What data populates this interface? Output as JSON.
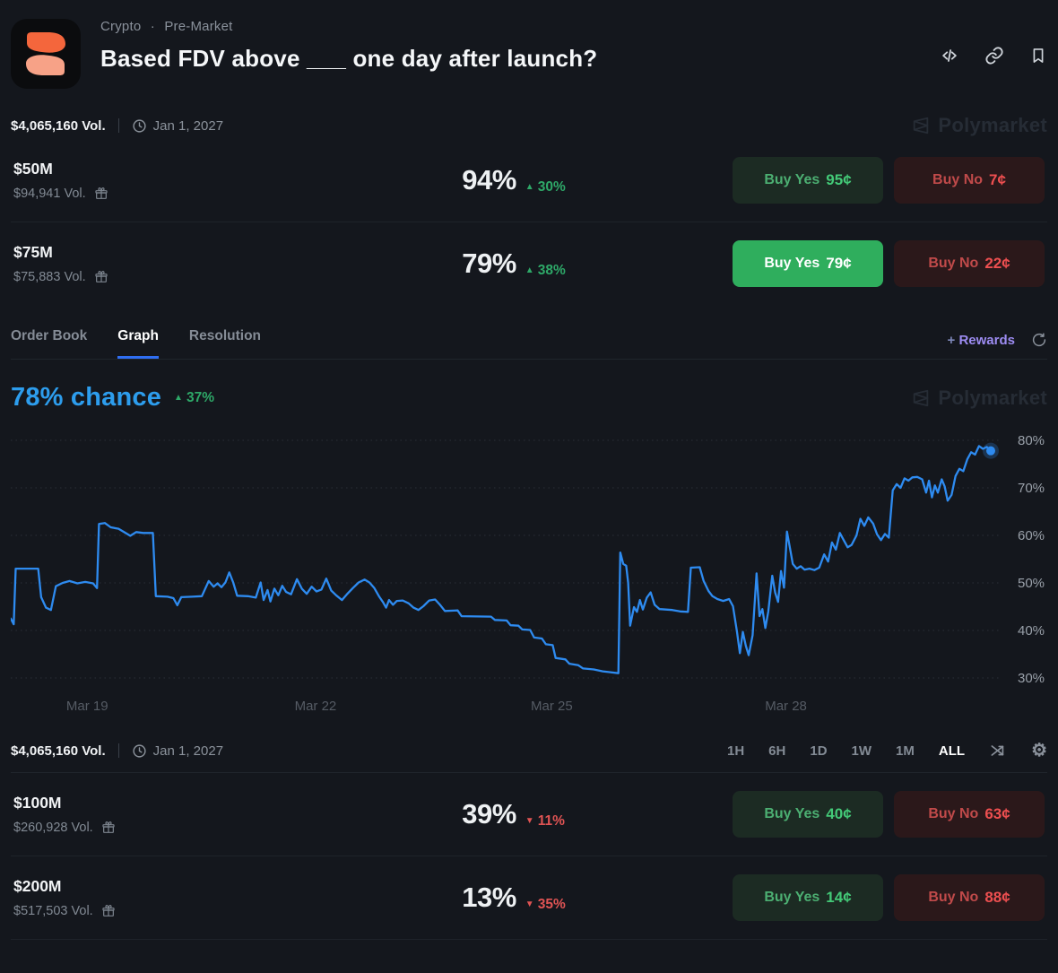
{
  "header": {
    "breadcrumb": {
      "category": "Crypto",
      "separator": "·",
      "subcategory": "Pre-Market"
    },
    "title": "Based FDV above ___ one day after launch?"
  },
  "meta": {
    "volume": "$4,065,160 Vol.",
    "date": "Jan 1, 2027"
  },
  "watermark": {
    "text": "Polymarket"
  },
  "outcomes": [
    {
      "name": "$50M",
      "volume": "$94,941 Vol.",
      "chance": "94%",
      "delta": "30%",
      "arrow": "▲",
      "yes_label": "Buy Yes",
      "yes_price": "95¢",
      "no_label": "Buy No",
      "no_price": "7¢"
    },
    {
      "name": "$75M",
      "volume": "$75,883 Vol.",
      "chance": "79%",
      "delta": "38%",
      "arrow": "▲",
      "yes_label": "Buy Yes",
      "yes_price": "79¢",
      "no_label": "Buy No",
      "no_price": "22¢"
    },
    {
      "name": "$100M",
      "volume": "$260,928 Vol.",
      "chance": "39%",
      "delta": "11%",
      "arrow": "▼",
      "yes_label": "Buy Yes",
      "yes_price": "40¢",
      "no_label": "Buy No",
      "no_price": "63¢"
    },
    {
      "name": "$200M",
      "volume": "$517,503 Vol.",
      "chance": "13%",
      "delta": "35%",
      "arrow": "▼",
      "yes_label": "Buy Yes",
      "yes_price": "14¢",
      "no_label": "Buy No",
      "no_price": "88¢"
    }
  ],
  "tabs": {
    "items": [
      "Order Book",
      "Graph",
      "Resolution"
    ],
    "active": "Graph",
    "rewards_plus": "+",
    "rewards": "Rewards"
  },
  "chart_header": {
    "chance": "78% chance",
    "delta": "37%",
    "arrow": "▲"
  },
  "time_controls": {
    "ranges": [
      "1H",
      "6H",
      "1D",
      "1W",
      "1M",
      "ALL"
    ],
    "active": "ALL"
  },
  "colors": {
    "line": "#2e8bf0",
    "chance_blue": "#2d9ded",
    "up_green": "#2ea868",
    "down_red": "#e05454",
    "yes_green": "#2fae5d",
    "background": "#14171d"
  },
  "chart_data": {
    "type": "line",
    "title": "78% chance",
    "unit": "%",
    "ylim": [
      28,
      84
    ],
    "grid": "dotted-horizontal",
    "legend": "none",
    "y_ticks": [
      {
        "value": 80,
        "label": "80%"
      },
      {
        "value": 70,
        "label": "70%"
      },
      {
        "value": 60,
        "label": "60%"
      },
      {
        "value": 50,
        "label": "50%"
      },
      {
        "value": 40,
        "label": "40%"
      },
      {
        "value": 30,
        "label": "30%"
      }
    ],
    "x_ticks": [
      {
        "pct": 7.8,
        "label": "Mar 19"
      },
      {
        "pct": 31.1,
        "label": "Mar 22"
      },
      {
        "pct": 55.2,
        "label": "Mar 25"
      },
      {
        "pct": 79.1,
        "label": "Mar 28"
      }
    ],
    "points": [
      [
        0,
        42.5
      ],
      [
        0.3,
        41.3
      ],
      [
        0.5,
        53
      ],
      [
        2.8,
        53
      ],
      [
        3.1,
        47
      ],
      [
        3.6,
        44.8
      ],
      [
        4.1,
        44.3
      ],
      [
        4.6,
        49.3
      ],
      [
        5.3,
        50
      ],
      [
        6,
        50.4
      ],
      [
        6.8,
        49.9
      ],
      [
        7.6,
        50.2
      ],
      [
        8.4,
        49.9
      ],
      [
        8.8,
        48.9
      ],
      [
        9,
        62.4
      ],
      [
        9.6,
        62.6
      ],
      [
        10.2,
        61.7
      ],
      [
        11,
        61.4
      ],
      [
        11.8,
        60.4
      ],
      [
        12.2,
        59.9
      ],
      [
        12.8,
        60.7
      ],
      [
        13.5,
        60.5
      ],
      [
        14.5,
        60.5
      ],
      [
        14.8,
        47.2
      ],
      [
        16,
        47.1
      ],
      [
        16.6,
        46.8
      ],
      [
        17,
        45.3
      ],
      [
        17.4,
        47
      ],
      [
        18.5,
        47.1
      ],
      [
        19.5,
        47.2
      ],
      [
        20.2,
        50.4
      ],
      [
        20.7,
        49.2
      ],
      [
        21.1,
        49.9
      ],
      [
        21.5,
        49.1
      ],
      [
        21.9,
        50.1
      ],
      [
        22.3,
        52.2
      ],
      [
        22.7,
        50.1
      ],
      [
        23.1,
        47.3
      ],
      [
        24.2,
        47.2
      ],
      [
        25,
        46.9
      ],
      [
        25.5,
        50.1
      ],
      [
        25.8,
        46.4
      ],
      [
        26.2,
        48.5
      ],
      [
        26.5,
        46.1
      ],
      [
        26.9,
        48.8
      ],
      [
        27.3,
        47.4
      ],
      [
        27.7,
        49.4
      ],
      [
        28.1,
        48.1
      ],
      [
        28.6,
        47.6
      ],
      [
        29.2,
        50.8
      ],
      [
        29.7,
        48.8
      ],
      [
        30.2,
        47.7
      ],
      [
        30.7,
        49.2
      ],
      [
        31.2,
        48.2
      ],
      [
        31.7,
        48.6
      ],
      [
        32.2,
        50.9
      ],
      [
        32.7,
        48.4
      ],
      [
        33.2,
        47.4
      ],
      [
        33.8,
        46.4
      ],
      [
        34.3,
        47.6
      ],
      [
        34.9,
        48.9
      ],
      [
        35.5,
        50.1
      ],
      [
        36.1,
        50.7
      ],
      [
        36.6,
        50.1
      ],
      [
        37.1,
        48.9
      ],
      [
        37.6,
        47.1
      ],
      [
        38,
        45.9
      ],
      [
        38.3,
        44.8
      ],
      [
        38.6,
        46.4
      ],
      [
        39,
        45.4
      ],
      [
        39.4,
        46.2
      ],
      [
        40,
        46.3
      ],
      [
        40.6,
        45.7
      ],
      [
        41.1,
        44.8
      ],
      [
        41.6,
        44.3
      ],
      [
        42.1,
        45.1
      ],
      [
        42.7,
        46.3
      ],
      [
        43.3,
        46.5
      ],
      [
        43.8,
        45.4
      ],
      [
        44.3,
        44.1
      ],
      [
        45.6,
        44.2
      ],
      [
        46,
        43
      ],
      [
        49,
        42.9
      ],
      [
        49.4,
        42.2
      ],
      [
        50.6,
        42.1
      ],
      [
        51,
        41.1
      ],
      [
        51.8,
        41
      ],
      [
        52.2,
        40.2
      ],
      [
        53,
        40.1
      ],
      [
        53.4,
        38.5
      ],
      [
        54.2,
        38.3
      ],
      [
        54.6,
        37.1
      ],
      [
        55.3,
        36.9
      ],
      [
        55.6,
        34.2
      ],
      [
        56.6,
        33.9
      ],
      [
        57,
        33
      ],
      [
        57.9,
        32.7
      ],
      [
        58.4,
        32
      ],
      [
        59.5,
        31.8
      ],
      [
        60.4,
        31.4
      ],
      [
        61.2,
        31.2
      ],
      [
        62,
        31
      ],
      [
        62.2,
        56.4
      ],
      [
        62.5,
        54
      ],
      [
        62.8,
        53.6
      ],
      [
        63,
        50
      ],
      [
        63.2,
        41
      ],
      [
        63.6,
        44.9
      ],
      [
        63.9,
        43.9
      ],
      [
        64.2,
        46.4
      ],
      [
        64.5,
        44.4
      ],
      [
        64.9,
        46.9
      ],
      [
        65.3,
        48
      ],
      [
        65.7,
        45.4
      ],
      [
        66.2,
        44.5
      ],
      [
        67.5,
        44.3
      ],
      [
        68.3,
        44
      ],
      [
        69.1,
        43.9
      ],
      [
        69.4,
        53.2
      ],
      [
        70.3,
        53.3
      ],
      [
        70.7,
        50.4
      ],
      [
        71.2,
        48.3
      ],
      [
        71.6,
        47.2
      ],
      [
        72.1,
        46.6
      ],
      [
        72.7,
        46.2
      ],
      [
        73.3,
        46.6
      ],
      [
        73.7,
        45.1
      ],
      [
        74.1,
        39.8
      ],
      [
        74.4,
        35.2
      ],
      [
        74.7,
        39.7
      ],
      [
        75,
        36.8
      ],
      [
        75.3,
        34.8
      ],
      [
        75.7,
        39
      ],
      [
        76.1,
        52
      ],
      [
        76.4,
        43
      ],
      [
        76.7,
        44.5
      ],
      [
        77,
        40.5
      ],
      [
        77.3,
        44
      ],
      [
        77.7,
        51.5
      ],
      [
        78,
        48
      ],
      [
        78.3,
        46
      ],
      [
        78.6,
        52.5
      ],
      [
        78.9,
        49
      ],
      [
        79.2,
        60.8
      ],
      [
        79.5,
        57.5
      ],
      [
        79.8,
        54
      ],
      [
        80.2,
        53
      ],
      [
        80.6,
        53.5
      ],
      [
        81,
        52.8
      ],
      [
        81.5,
        53
      ],
      [
        82,
        52.7
      ],
      [
        82.5,
        53.2
      ],
      [
        83,
        56
      ],
      [
        83.4,
        54.5
      ],
      [
        83.8,
        58.5
      ],
      [
        84.2,
        57
      ],
      [
        84.6,
        60.5
      ],
      [
        85,
        59
      ],
      [
        85.4,
        57.5
      ],
      [
        85.8,
        58
      ],
      [
        86.3,
        60
      ],
      [
        86.7,
        63.5
      ],
      [
        87.1,
        62
      ],
      [
        87.5,
        63.8
      ],
      [
        88,
        62.5
      ],
      [
        88.4,
        60.2
      ],
      [
        88.8,
        59
      ],
      [
        89.2,
        60.3
      ],
      [
        89.6,
        59.5
      ],
      [
        90,
        69.5
      ],
      [
        90.4,
        70.8
      ],
      [
        90.8,
        70
      ],
      [
        91.2,
        72
      ],
      [
        91.6,
        71.5
      ],
      [
        92,
        72.2
      ],
      [
        92.5,
        72.3
      ],
      [
        93,
        71.8
      ],
      [
        93.4,
        69
      ],
      [
        93.7,
        71.5
      ],
      [
        94,
        68
      ],
      [
        94.3,
        70.5
      ],
      [
        94.6,
        69
      ],
      [
        95,
        71.8
      ],
      [
        95.3,
        70.3
      ],
      [
        95.6,
        67.3
      ],
      [
        96,
        68.5
      ],
      [
        96.4,
        72.5
      ],
      [
        96.8,
        74
      ],
      [
        97.2,
        73.5
      ],
      [
        97.6,
        76
      ],
      [
        98,
        77.5
      ],
      [
        98.4,
        77
      ],
      [
        98.8,
        78.8
      ],
      [
        99.2,
        78.2
      ],
      [
        99.6,
        78.6
      ],
      [
        100,
        77.8
      ]
    ]
  }
}
